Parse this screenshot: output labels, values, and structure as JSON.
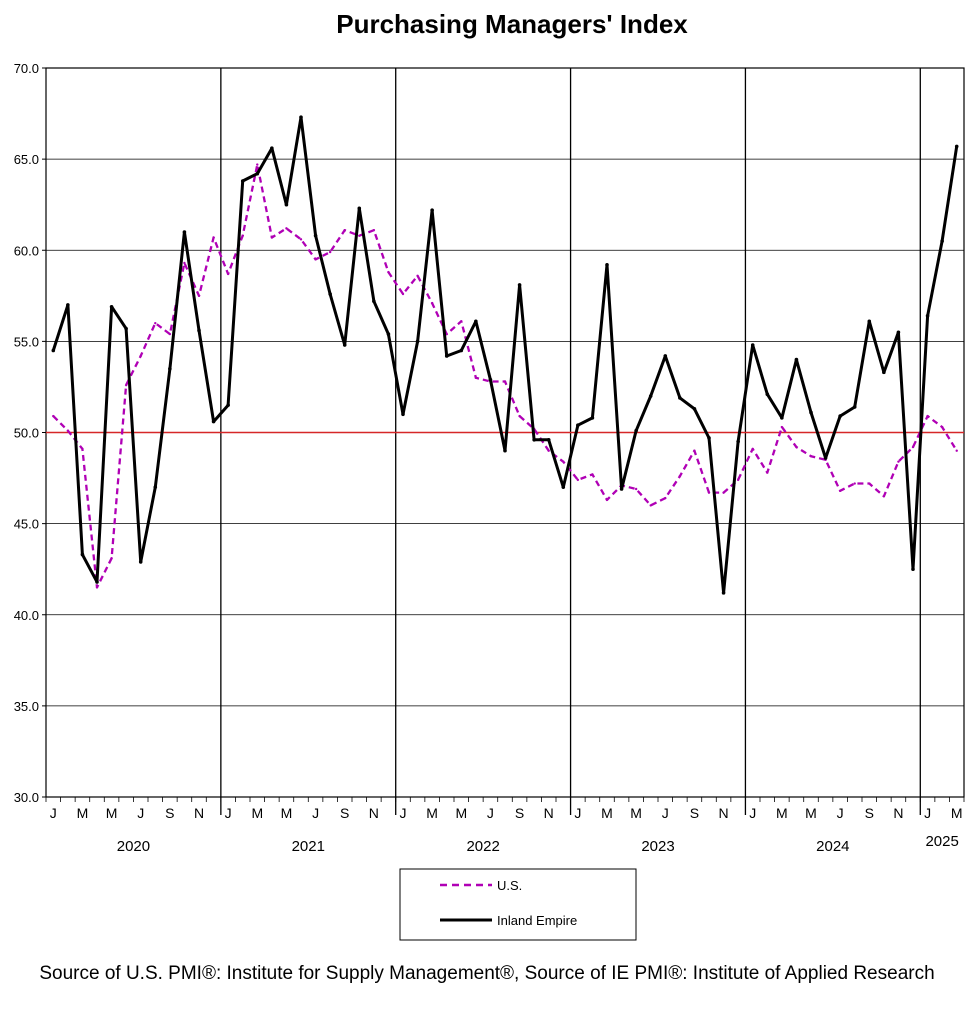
{
  "chart_data": {
    "type": "line",
    "title": "Purchasing Managers' Index",
    "ylim": [
      30,
      70
    ],
    "yticks": [
      "30.0",
      "35.0",
      "40.0",
      "45.0",
      "50.0",
      "55.0",
      "60.0",
      "65.0",
      "70.0"
    ],
    "reference_line": {
      "value": 50,
      "color": "#d62728"
    },
    "month_labels": [
      "J",
      "M",
      "M",
      "J",
      "S",
      "N",
      "J",
      "M",
      "M",
      "J",
      "S",
      "N",
      "J",
      "M",
      "M",
      "J",
      "S",
      "N",
      "J",
      "M",
      "M",
      "J",
      "S",
      "N",
      "J",
      "M",
      "M",
      "J",
      "S",
      "N",
      "J",
      "M"
    ],
    "years": [
      {
        "label": "2020",
        "start_month": 0
      },
      {
        "label": "2021",
        "start_month": 12
      },
      {
        "label": "2022",
        "start_month": 24
      },
      {
        "label": "2023",
        "start_month": 36
      },
      {
        "label": "2024",
        "start_month": 48
      },
      {
        "label": "2025",
        "start_month": 60
      }
    ],
    "series": [
      {
        "name": "U.S.",
        "color": "#b000b5",
        "style": "dashed",
        "values": [
          50.9,
          50.1,
          49.1,
          41.5,
          43.1,
          52.6,
          54.2,
          56.0,
          55.4,
          59.3,
          57.5,
          60.7,
          58.7,
          60.8,
          64.7,
          60.7,
          61.2,
          60.6,
          59.5,
          59.9,
          61.1,
          60.8,
          61.1,
          58.8,
          57.6,
          58.6,
          57.1,
          55.4,
          56.1,
          53.0,
          52.8,
          52.8,
          50.9,
          50.2,
          49.0,
          48.4,
          47.4,
          47.7,
          46.3,
          47.1,
          46.9,
          46.0,
          46.4,
          47.6,
          49.0,
          46.7,
          46.7,
          47.4,
          49.1,
          47.8,
          50.3,
          49.2,
          48.7,
          48.5,
          46.8,
          47.2,
          47.2,
          46.5,
          48.4,
          49.2,
          50.9,
          50.3,
          49.0
        ]
      },
      {
        "name": "Inland Empire",
        "color": "#000000",
        "style": "solid",
        "values": [
          54.5,
          57.0,
          43.3,
          41.8,
          56.9,
          55.7,
          42.9,
          47.0,
          53.5,
          61.0,
          55.6,
          50.6,
          51.5,
          63.8,
          64.2,
          65.6,
          62.5,
          67.3,
          60.8,
          57.6,
          54.8,
          62.3,
          57.2,
          55.4,
          51.0,
          55.0,
          62.2,
          54.2,
          54.5,
          56.1,
          52.9,
          49.0,
          58.1,
          49.6,
          49.6,
          47.0,
          50.4,
          50.8,
          59.2,
          46.9,
          50.1,
          52.0,
          54.2,
          51.9,
          51.3,
          49.7,
          41.2,
          49.5,
          54.8,
          52.1,
          50.8,
          54.0,
          51.1,
          48.6,
          50.9,
          51.4,
          56.1,
          53.3,
          55.5,
          42.5,
          56.4,
          60.5,
          65.7
        ]
      }
    ]
  },
  "legend": {
    "items": [
      "U.S.",
      "Inland Empire"
    ]
  },
  "source_note": "Source of U.S. PMI®: Institute for Supply Management®, Source of IE PMI®: Institute of Applied Research"
}
